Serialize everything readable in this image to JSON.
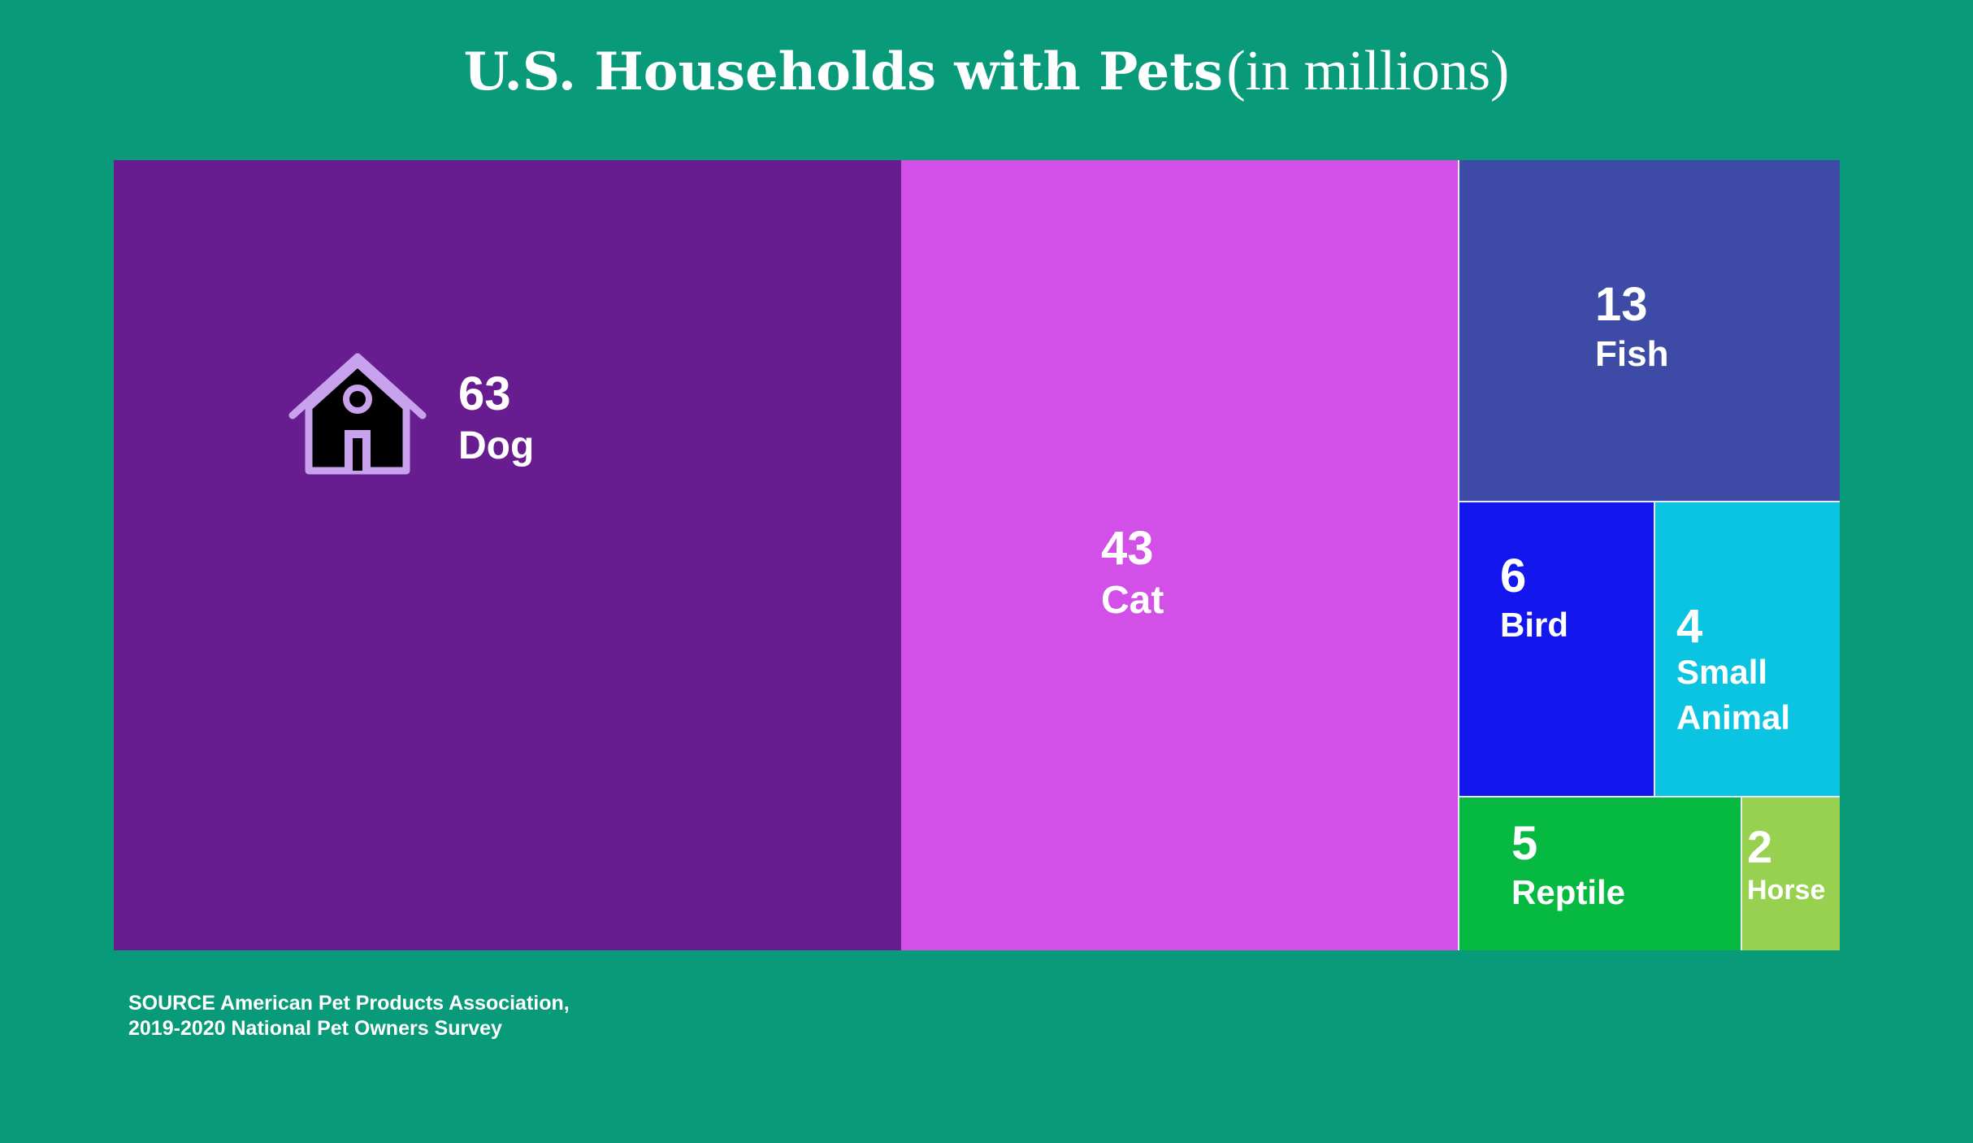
{
  "title": {
    "main": "U.S. Households with Pets",
    "sub": "(in millions)"
  },
  "chart_data": {
    "type": "treemap",
    "title": "U.S. Households with Pets (in millions)",
    "units": "millions of households",
    "items": [
      {
        "label": "Dog",
        "value": 63,
        "color": "#671c8f"
      },
      {
        "label": "Cat",
        "value": 43,
        "color": "#d24fe8"
      },
      {
        "label": "Fish",
        "value": 13,
        "color": "#3d4ba7"
      },
      {
        "label": "Bird",
        "value": 6,
        "color": "#1317ee"
      },
      {
        "label": "Small\nAnimal",
        "value": 4,
        "color": "#0bc4e1"
      },
      {
        "label": "Reptile",
        "value": 5,
        "color": "#06b940"
      },
      {
        "label": "Horse",
        "value": 2,
        "color": "#97d14f"
      }
    ]
  },
  "icon": {
    "name": "dog-house-icon",
    "color": "#c9a2ee"
  },
  "source": {
    "line1": "SOURCE American Pet Products Association,",
    "line2": "2019-2020 National Pet Owners Survey"
  }
}
